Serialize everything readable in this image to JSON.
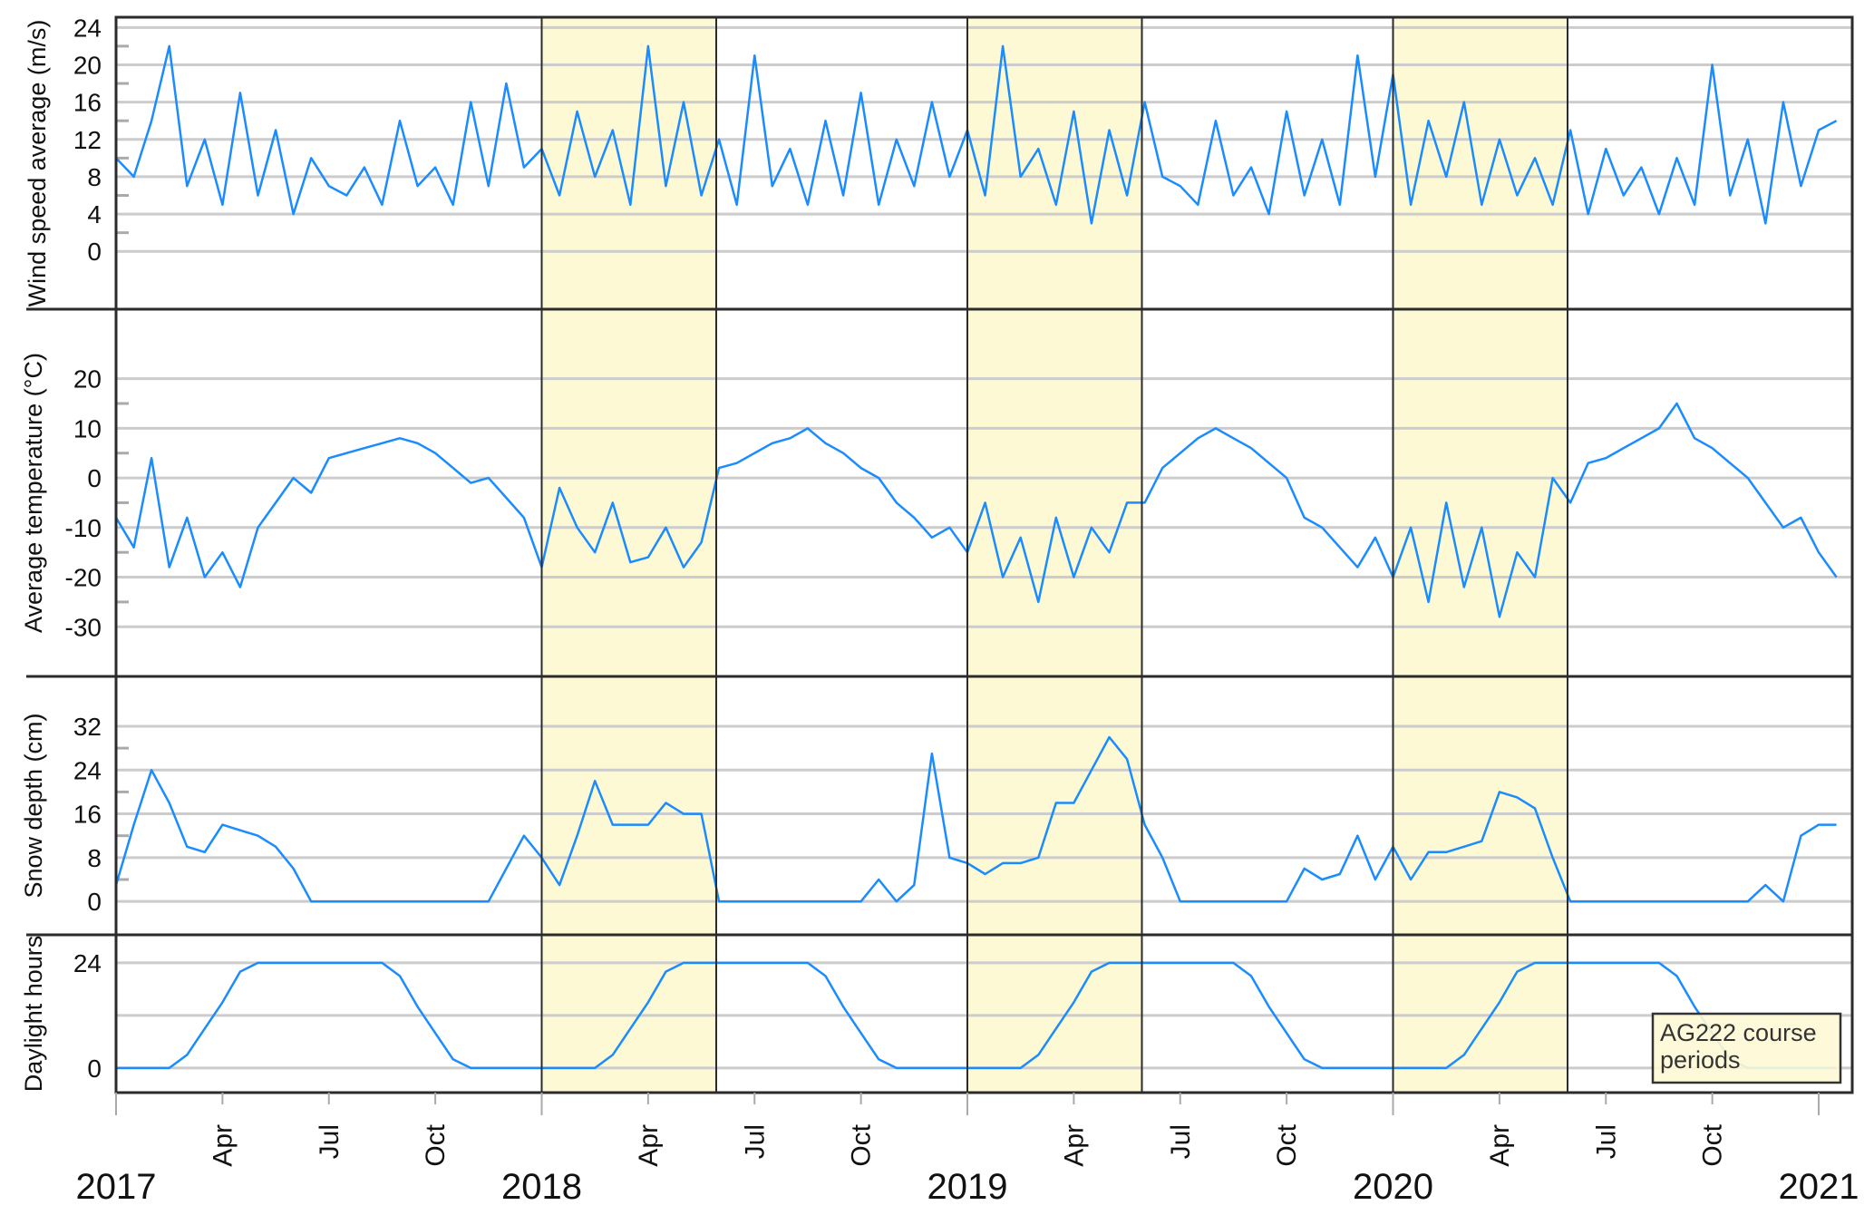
{
  "chart_data": {
    "type": "line",
    "x_axis": {
      "start_year": 2017,
      "step_years": 0.0416667,
      "range_years": [
        2017.0,
        2021.07
      ],
      "year_labels": [
        "2017",
        "2018",
        "2019",
        "2020",
        "2021"
      ],
      "month_labels": [
        "Apr",
        "Jul",
        "Oct"
      ],
      "month_positions_years": [
        0.25,
        0.5,
        0.75
      ]
    },
    "shaded_periods": [
      {
        "start": 2018.0,
        "end": 2018.41
      },
      {
        "start": 2019.0,
        "end": 2019.41
      },
      {
        "start": 2020.0,
        "end": 2020.41
      }
    ],
    "legend": {
      "lines": [
        "AG222 course",
        "periods"
      ],
      "placement": "bottom-right"
    },
    "colors": {
      "line": "#1a8cff",
      "shade": "#fef9d5",
      "grid": "#cccccc",
      "frame": "#2b2b2b"
    },
    "panels": [
      {
        "ylabel": "Wind speed average (m/s)",
        "ylim": [
          -6.2,
          25.1
        ],
        "yticks": [
          0,
          4,
          8,
          12,
          16,
          20,
          24
        ],
        "ytick_labels": [
          "0",
          "4",
          "8",
          "12",
          "16",
          "20",
          "24"
        ],
        "minor_ticks": [
          2,
          6,
          10,
          14,
          18,
          22
        ],
        "values": [
          10,
          8,
          14,
          22,
          7,
          12,
          5,
          17,
          6,
          13,
          4,
          10,
          7,
          6,
          9,
          5,
          14,
          7,
          9,
          5,
          16,
          7,
          18,
          9,
          11,
          6,
          15,
          8,
          13,
          5,
          22,
          7,
          16,
          6,
          12,
          5,
          21,
          7,
          11,
          5,
          14,
          6,
          17,
          5,
          12,
          7,
          16,
          8,
          13,
          6,
          22,
          8,
          11,
          5,
          15,
          3,
          13,
          6,
          16,
          8,
          7,
          5,
          14,
          6,
          9,
          4,
          15,
          6,
          12,
          5,
          21,
          8,
          19,
          5,
          14,
          8,
          16,
          5,
          12,
          6,
          10,
          5,
          13,
          4,
          11,
          6,
          9,
          4,
          10,
          5,
          20,
          6,
          12,
          3,
          16,
          7,
          13,
          14
        ]
      },
      {
        "ylabel": "Average temperature (°C)",
        "ylim": [
          -40,
          34
        ],
        "yticks": [
          -30,
          -20,
          -10,
          0,
          10,
          20
        ],
        "ytick_labels": [
          "-30",
          "-20",
          "-10",
          "0",
          "10",
          "20"
        ],
        "minor_ticks": [
          -25,
          -15,
          -5,
          5,
          15
        ],
        "values": [
          -8,
          -14,
          4,
          -18,
          -8,
          -20,
          -15,
          -22,
          -10,
          -5,
          0,
          -3,
          4,
          5,
          6,
          7,
          8,
          7,
          5,
          2,
          -1,
          0,
          -4,
          -8,
          -18,
          -2,
          -10,
          -15,
          -5,
          -17,
          -16,
          -10,
          -18,
          -13,
          2,
          3,
          5,
          7,
          8,
          10,
          7,
          5,
          2,
          0,
          -5,
          -8,
          -12,
          -10,
          -15,
          -5,
          -20,
          -12,
          -25,
          -8,
          -20,
          -10,
          -15,
          -5,
          -5,
          2,
          5,
          8,
          10,
          8,
          6,
          3,
          0,
          -8,
          -10,
          -14,
          -18,
          -12,
          -20,
          -10,
          -25,
          -5,
          -22,
          -10,
          -28,
          -15,
          -20,
          0,
          -5,
          3,
          4,
          6,
          8,
          10,
          15,
          8,
          6,
          3,
          0,
          -5,
          -10,
          -8,
          -15,
          -20
        ]
      },
      {
        "ylabel": "Snow depth (cm)",
        "ylim": [
          -6.1,
          41.1
        ],
        "yticks": [
          0,
          8,
          16,
          24,
          32
        ],
        "ytick_labels": [
          "0",
          "8",
          "16",
          "24",
          "32"
        ],
        "minor_ticks": [
          4,
          12,
          20,
          28
        ],
        "values": [
          3,
          14,
          24,
          18,
          10,
          9,
          14,
          13,
          12,
          10,
          6,
          0,
          0,
          0,
          0,
          0,
          0,
          0,
          0,
          0,
          0,
          0,
          6,
          12,
          8,
          3,
          12,
          22,
          14,
          14,
          14,
          18,
          16,
          16,
          0,
          0,
          0,
          0,
          0,
          0,
          0,
          0,
          0,
          4,
          0,
          3,
          27,
          8,
          7,
          5,
          7,
          7,
          8,
          18,
          18,
          24,
          30,
          26,
          14,
          8,
          0,
          0,
          0,
          0,
          0,
          0,
          0,
          6,
          4,
          5,
          12,
          4,
          10,
          4,
          9,
          9,
          10,
          11,
          20,
          19,
          17,
          8,
          0,
          0,
          0,
          0,
          0,
          0,
          0,
          0,
          0,
          0,
          0,
          3,
          0,
          12,
          14,
          14
        ]
      },
      {
        "ylabel": "Daylight hours",
        "ylim": [
          -5.6,
          30.4
        ],
        "yticks": [
          0,
          12,
          24
        ],
        "ytick_labels": [
          "0",
          "",
          "24"
        ],
        "minor_ticks": [],
        "values": [
          0,
          0,
          0,
          0,
          3,
          9,
          15,
          22,
          24,
          24,
          24,
          24,
          24,
          24,
          24,
          24,
          21,
          14,
          8,
          2,
          0,
          0,
          0,
          0,
          0,
          0,
          0,
          0,
          3,
          9,
          15,
          22,
          24,
          24,
          24,
          24,
          24,
          24,
          24,
          24,
          21,
          14,
          8,
          2,
          0,
          0,
          0,
          0,
          0,
          0,
          0,
          0,
          3,
          9,
          15,
          22,
          24,
          24,
          24,
          24,
          24,
          24,
          24,
          24,
          21,
          14,
          8,
          2,
          0,
          0,
          0,
          0,
          0,
          0,
          0,
          0,
          3,
          9,
          15,
          22,
          24,
          24,
          24,
          24,
          24,
          24,
          24,
          24,
          21,
          14,
          8,
          2,
          0,
          0,
          0,
          0,
          0,
          0
        ]
      }
    ]
  }
}
